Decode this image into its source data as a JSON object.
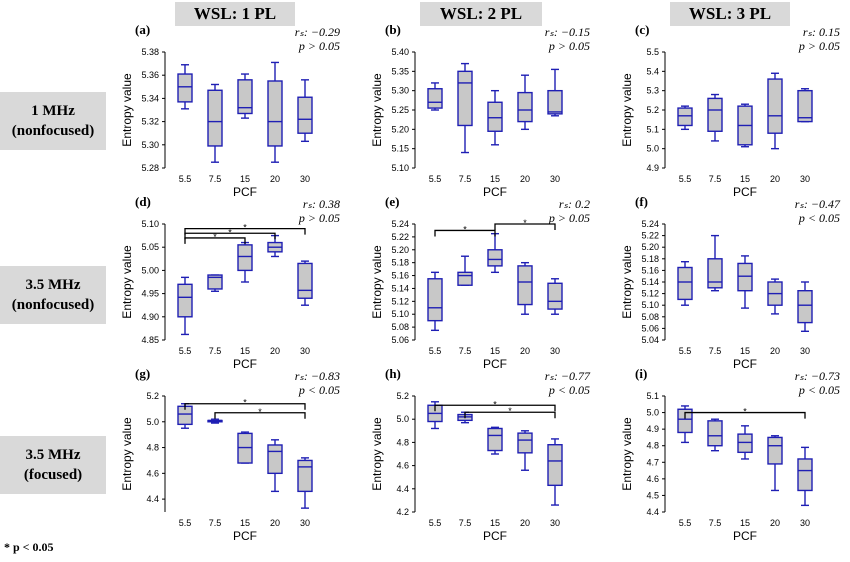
{
  "column_headers": [
    "WSL: 1 PL",
    "WSL: 2 PL",
    "WSL: 3 PL"
  ],
  "row_headers": [
    {
      "line1": "1 MHz",
      "line2": "(nonfocused)"
    },
    {
      "line1": "3.5 MHz",
      "line2": "(nonfocused)"
    },
    {
      "line1": "3.5 MHz",
      "line2": "(focused)"
    }
  ],
  "footnote": "* p < 0.05",
  "colors": {
    "box_fill": "#c8c8c8",
    "box_stroke": "#1f1fb4",
    "header_bg": "#d9d9d9"
  },
  "chart_data": [
    {
      "type": "box",
      "panel": "(a)",
      "categories": [
        "5.5",
        "7.5",
        "15",
        "20",
        "30"
      ],
      "xlabel": "PCF",
      "ylabel": "Entropy value",
      "ylim": [
        5.28,
        5.38
      ],
      "yticks": [
        "5.28",
        "5.30",
        "5.32",
        "5.34",
        "5.36",
        "5.38"
      ],
      "rs": "r_s: −0.29",
      "p": "p > 0.05",
      "boxes": [
        {
          "min": 5.331,
          "q1": 5.337,
          "median": 5.35,
          "q3": 5.361,
          "max": 5.369
        },
        {
          "min": 5.285,
          "q1": 5.299,
          "median": 5.32,
          "q3": 5.347,
          "max": 5.352
        },
        {
          "min": 5.323,
          "q1": 5.327,
          "median": 5.332,
          "q3": 5.356,
          "max": 5.361
        },
        {
          "min": 5.285,
          "q1": 5.299,
          "median": 5.32,
          "q3": 5.355,
          "max": 5.371
        },
        {
          "min": 5.303,
          "q1": 5.31,
          "median": 5.322,
          "q3": 5.341,
          "max": 5.356
        }
      ],
      "brackets": []
    },
    {
      "type": "box",
      "panel": "(b)",
      "categories": [
        "5.5",
        "7.5",
        "15",
        "20",
        "30"
      ],
      "xlabel": "PCF",
      "ylabel": "Entropy value",
      "ylim": [
        5.1,
        5.4
      ],
      "yticks": [
        "5.10",
        "5.15",
        "5.20",
        "5.25",
        "5.30",
        "5.35",
        "5.40"
      ],
      "rs": "r_s: −0.15",
      "p": "p > 0.05",
      "boxes": [
        {
          "min": 5.25,
          "q1": 5.255,
          "median": 5.27,
          "q3": 5.305,
          "max": 5.32
        },
        {
          "min": 5.14,
          "q1": 5.21,
          "median": 5.32,
          "q3": 5.35,
          "max": 5.37
        },
        {
          "min": 5.16,
          "q1": 5.195,
          "median": 5.23,
          "q3": 5.27,
          "max": 5.3
        },
        {
          "min": 5.2,
          "q1": 5.22,
          "median": 5.25,
          "q3": 5.295,
          "max": 5.34
        },
        {
          "min": 5.235,
          "q1": 5.24,
          "median": 5.245,
          "q3": 5.3,
          "max": 5.355
        }
      ],
      "brackets": []
    },
    {
      "type": "box",
      "panel": "(c)",
      "categories": [
        "5.5",
        "7.5",
        "15",
        "20",
        "30"
      ],
      "xlabel": "PCF",
      "ylabel": "Entropy value",
      "ylim": [
        4.9,
        5.5
      ],
      "yticks": [
        "4.9",
        "5.0",
        "5.1",
        "5.2",
        "5.3",
        "5.4",
        "5.5"
      ],
      "rs": "r_s: 0.15",
      "p": "p > 0.05",
      "boxes": [
        {
          "min": 5.1,
          "q1": 5.12,
          "median": 5.17,
          "q3": 5.21,
          "max": 5.22
        },
        {
          "min": 5.04,
          "q1": 5.09,
          "median": 5.2,
          "q3": 5.26,
          "max": 5.28
        },
        {
          "min": 5.01,
          "q1": 5.02,
          "median": 5.12,
          "q3": 5.22,
          "max": 5.23
        },
        {
          "min": 5.0,
          "q1": 5.08,
          "median": 5.17,
          "q3": 5.36,
          "max": 5.39
        },
        {
          "min": 5.14,
          "q1": 5.14,
          "median": 5.16,
          "q3": 5.3,
          "max": 5.31
        }
      ],
      "brackets": []
    },
    {
      "type": "box",
      "panel": "(d)",
      "categories": [
        "5.5",
        "7.5",
        "15",
        "20",
        "30"
      ],
      "xlabel": "PCF",
      "ylabel": "Entropy value",
      "ylim": [
        4.85,
        5.1
      ],
      "yticks": [
        "4.85",
        "4.90",
        "4.95",
        "5.00",
        "5.05",
        "5.10"
      ],
      "rs": "r_s: 0.38",
      "p": "p > 0.05",
      "boxes": [
        {
          "min": 4.862,
          "q1": 4.9,
          "median": 4.942,
          "q3": 4.97,
          "max": 4.985
        },
        {
          "min": 4.955,
          "q1": 4.96,
          "median": 4.985,
          "q3": 4.99,
          "max": 4.99
        },
        {
          "min": 4.975,
          "q1": 5.0,
          "median": 5.03,
          "q3": 5.055,
          "max": 5.06
        },
        {
          "min": 5.03,
          "q1": 5.04,
          "median": 5.05,
          "q3": 5.06,
          "max": 5.075
        },
        {
          "min": 4.925,
          "q1": 4.94,
          "median": 4.957,
          "q3": 5.015,
          "max": 5.02
        }
      ],
      "brackets": [
        {
          "from": "5.5",
          "to": "30",
          "level": 5.09
        },
        {
          "from": "5.5",
          "to": "20",
          "level": 5.08
        },
        {
          "from": "5.5",
          "to": "15",
          "level": 5.07
        }
      ]
    },
    {
      "type": "box",
      "panel": "(e)",
      "categories": [
        "5.5",
        "7.5",
        "15",
        "20",
        "30"
      ],
      "xlabel": "PCF",
      "ylabel": "Entropy value",
      "ylim": [
        5.06,
        5.24
      ],
      "yticks": [
        "5.06",
        "5.08",
        "5.10",
        "5.12",
        "5.14",
        "5.16",
        "5.18",
        "5.20",
        "5.22",
        "5.24"
      ],
      "rs": "r_s: 0.2",
      "p": "p > 0.05",
      "boxes": [
        {
          "min": 5.075,
          "q1": 5.09,
          "median": 5.11,
          "q3": 5.155,
          "max": 5.165
        },
        {
          "min": 5.145,
          "q1": 5.145,
          "median": 5.16,
          "q3": 5.165,
          "max": 5.19
        },
        {
          "min": 5.165,
          "q1": 5.175,
          "median": 5.185,
          "q3": 5.2,
          "max": 5.225
        },
        {
          "min": 5.1,
          "q1": 5.115,
          "median": 5.15,
          "q3": 5.175,
          "max": 5.18
        },
        {
          "min": 5.1,
          "q1": 5.108,
          "median": 5.12,
          "q3": 5.148,
          "max": 5.155
        }
      ],
      "brackets": [
        {
          "from": "5.5",
          "to": "15",
          "level": 5.23
        },
        {
          "from": "15",
          "to": "30",
          "level": 5.24
        }
      ]
    },
    {
      "type": "box",
      "panel": "(f)",
      "categories": [
        "5.5",
        "7.5",
        "15",
        "20",
        "30"
      ],
      "xlabel": "PCF",
      "ylabel": "Entropy value",
      "ylim": [
        5.04,
        5.24
      ],
      "yticks": [
        "5.04",
        "5.06",
        "5.08",
        "5.10",
        "5.12",
        "5.14",
        "5.16",
        "5.18",
        "5.20",
        "5.22",
        "5.24"
      ],
      "rs": "r_s: −0.47",
      "p": "p < 0.05",
      "boxes": [
        {
          "min": 5.1,
          "q1": 5.11,
          "median": 5.14,
          "q3": 5.165,
          "max": 5.175
        },
        {
          "min": 5.125,
          "q1": 5.13,
          "median": 5.14,
          "q3": 5.18,
          "max": 5.22
        },
        {
          "min": 5.095,
          "q1": 5.125,
          "median": 5.15,
          "q3": 5.172,
          "max": 5.185
        },
        {
          "min": 5.085,
          "q1": 5.1,
          "median": 5.12,
          "q3": 5.14,
          "max": 5.145
        },
        {
          "min": 5.055,
          "q1": 5.07,
          "median": 5.1,
          "q3": 5.125,
          "max": 5.14
        }
      ],
      "brackets": []
    },
    {
      "type": "box",
      "panel": "(g)",
      "categories": [
        "5.5",
        "7.5",
        "15",
        "20",
        "30"
      ],
      "xlabel": "PCF",
      "ylabel": "Entropy value",
      "ylim": [
        4.3,
        5.2
      ],
      "yticks": [
        "4.4",
        "4.6",
        "4.8",
        "5.0",
        "5.2"
      ],
      "rs": "r_s: −0.83",
      "p": "p < 0.05",
      "boxes": [
        {
          "min": 4.95,
          "q1": 4.98,
          "median": 5.06,
          "q3": 5.12,
          "max": 5.14
        },
        {
          "min": 4.99,
          "q1": 5.0,
          "median": 5.01,
          "q3": 5.01,
          "max": 5.02
        },
        {
          "min": 4.68,
          "q1": 4.68,
          "median": 4.8,
          "q3": 4.91,
          "max": 4.92
        },
        {
          "min": 4.46,
          "q1": 4.6,
          "median": 4.77,
          "q3": 4.82,
          "max": 4.86
        },
        {
          "min": 4.33,
          "q1": 4.46,
          "median": 4.65,
          "q3": 4.7,
          "max": 4.72
        }
      ],
      "brackets": [
        {
          "from": "5.5",
          "to": "30",
          "level": 5.14
        },
        {
          "from": "7.5",
          "to": "30",
          "level": 5.07
        }
      ]
    },
    {
      "type": "box",
      "panel": "(h)",
      "categories": [
        "5.5",
        "7.5",
        "15",
        "20",
        "30"
      ],
      "xlabel": "PCF",
      "ylabel": "Entropy value",
      "ylim": [
        4.2,
        5.2
      ],
      "yticks": [
        "4.2",
        "4.4",
        "4.6",
        "4.8",
        "5.0",
        "5.2"
      ],
      "rs": "r_s: −0.77",
      "p": "p < 0.05",
      "boxes": [
        {
          "min": 4.92,
          "q1": 4.98,
          "median": 5.05,
          "q3": 5.12,
          "max": 5.15
        },
        {
          "min": 4.97,
          "q1": 4.99,
          "median": 5.02,
          "q3": 5.04,
          "max": 5.06
        },
        {
          "min": 4.7,
          "q1": 4.73,
          "median": 4.86,
          "q3": 4.92,
          "max": 4.93
        },
        {
          "min": 4.56,
          "q1": 4.71,
          "median": 4.82,
          "q3": 4.88,
          "max": 4.9
        },
        {
          "min": 4.26,
          "q1": 4.43,
          "median": 4.64,
          "q3": 4.78,
          "max": 4.83
        }
      ],
      "brackets": [
        {
          "from": "5.5",
          "to": "30",
          "level": 5.12
        },
        {
          "from": "7.5",
          "to": "30",
          "level": 5.06
        }
      ]
    },
    {
      "type": "box",
      "panel": "(i)",
      "categories": [
        "5.5",
        "7.5",
        "15",
        "20",
        "30"
      ],
      "xlabel": "PCF",
      "ylabel": "Entropy value",
      "ylim": [
        4.4,
        5.1
      ],
      "yticks": [
        "4.4",
        "4.5",
        "4.6",
        "4.7",
        "4.8",
        "4.9",
        "5.0",
        "5.1"
      ],
      "rs": "r_s: −0.73",
      "p": "p < 0.05",
      "boxes": [
        {
          "min": 4.82,
          "q1": 4.88,
          "median": 4.96,
          "q3": 5.02,
          "max": 5.04
        },
        {
          "min": 4.77,
          "q1": 4.8,
          "median": 4.86,
          "q3": 4.95,
          "max": 4.96
        },
        {
          "min": 4.72,
          "q1": 4.76,
          "median": 4.82,
          "q3": 4.87,
          "max": 4.92
        },
        {
          "min": 4.53,
          "q1": 4.69,
          "median": 4.8,
          "q3": 4.85,
          "max": 4.86
        },
        {
          "min": 4.44,
          "q1": 4.53,
          "median": 4.65,
          "q3": 4.72,
          "max": 4.79
        }
      ],
      "brackets": [
        {
          "from": "5.5",
          "to": "30",
          "level": 5.0
        }
      ]
    }
  ]
}
